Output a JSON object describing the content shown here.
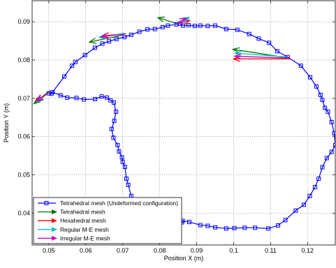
{
  "chart_data": {
    "type": "line",
    "xlabel": "Position X (m)",
    "ylabel": "Position Y (m)",
    "xlim": [
      0.0455,
      0.1275
    ],
    "ylim": [
      0.0317,
      0.0955
    ],
    "grid": true,
    "legend_position": "bottom-left",
    "x_ticks": [
      0.05,
      0.06,
      0.07,
      0.08,
      0.09,
      0.1,
      0.11,
      0.12
    ],
    "x_tick_labels": [
      "0.05",
      "0.06",
      "0.07",
      "0.08",
      "0.09",
      "0.1",
      "0.11",
      "0.12"
    ],
    "y_ticks": [
      0.04,
      0.05,
      0.06,
      0.07,
      0.08,
      0.09
    ],
    "y_tick_labels": [
      "0.04",
      "0.05",
      "0.06",
      "0.07",
      "0.08",
      "0.09"
    ],
    "path": {
      "name": "Tetrahedral mesh (Undeformed configuration)",
      "color": "#0000ff",
      "points": [
        [
          0.0507,
          0.0712
        ],
        [
          0.0542,
          0.0757
        ],
        [
          0.0563,
          0.0785
        ],
        [
          0.0572,
          0.0795
        ],
        [
          0.0598,
          0.0813
        ],
        [
          0.0625,
          0.0832
        ],
        [
          0.0645,
          0.0843
        ],
        [
          0.0663,
          0.0849
        ],
        [
          0.0683,
          0.0855
        ],
        [
          0.0705,
          0.086
        ],
        [
          0.0723,
          0.0866
        ],
        [
          0.0745,
          0.0874
        ],
        [
          0.0767,
          0.088
        ],
        [
          0.0787,
          0.0881
        ],
        [
          0.0808,
          0.0886
        ],
        [
          0.0822,
          0.089
        ],
        [
          0.0845,
          0.0893
        ],
        [
          0.0855,
          0.0895
        ],
        [
          0.0863,
          0.089
        ],
        [
          0.0878,
          0.0891
        ],
        [
          0.0895,
          0.0889
        ],
        [
          0.091,
          0.089
        ],
        [
          0.093,
          0.0889
        ],
        [
          0.095,
          0.089
        ],
        [
          0.098,
          0.0881
        ],
        [
          0.101,
          0.0879
        ],
        [
          0.1042,
          0.0868
        ],
        [
          0.1068,
          0.0856
        ],
        [
          0.1096,
          0.0845
        ],
        [
          0.1118,
          0.0823
        ],
        [
          0.1146,
          0.0808
        ],
        [
          0.1182,
          0.0785
        ],
        [
          0.1207,
          0.0755
        ],
        [
          0.1224,
          0.0731
        ],
        [
          0.1235,
          0.0709
        ],
        [
          0.124,
          0.0696
        ],
        [
          0.1247,
          0.0675
        ],
        [
          0.1255,
          0.0665
        ],
        [
          0.1265,
          0.0638
        ],
        [
          0.1272,
          0.0609
        ],
        [
          0.1275,
          0.0578
        ],
        [
          0.1265,
          0.056
        ],
        [
          0.1252,
          0.0544
        ],
        [
          0.124,
          0.052
        ],
        [
          0.123,
          0.049
        ],
        [
          0.122,
          0.0468
        ],
        [
          0.1206,
          0.0445
        ],
        [
          0.119,
          0.0422
        ],
        [
          0.1168,
          0.0407
        ],
        [
          0.114,
          0.0382
        ],
        [
          0.112,
          0.0368
        ],
        [
          0.1094,
          0.036
        ],
        [
          0.1058,
          0.0362
        ],
        [
          0.103,
          0.0362
        ],
        [
          0.1002,
          0.0361
        ],
        [
          0.098,
          0.036
        ],
        [
          0.095,
          0.0363
        ],
        [
          0.093,
          0.0367
        ],
        [
          0.091,
          0.0369
        ],
        [
          0.088,
          0.0377
        ],
        [
          0.0862,
          0.038
        ],
        [
          0.086,
          0.0376
        ],
        [
          0.085,
          0.0375
        ],
        [
          0.084,
          0.0375
        ],
        [
          0.082,
          0.0375
        ],
        [
          0.079,
          0.0376
        ],
        [
          0.0765,
          0.0376
        ],
        [
          0.0735,
          0.0379
        ],
        [
          0.0728,
          0.039
        ],
        [
          0.0727,
          0.0405
        ],
        [
          0.0726,
          0.042
        ],
        [
          0.0723,
          0.0445
        ],
        [
          0.0715,
          0.0474
        ],
        [
          0.071,
          0.049
        ],
        [
          0.0706,
          0.0521
        ],
        [
          0.07,
          0.0534
        ],
        [
          0.0698,
          0.0546
        ],
        [
          0.069,
          0.0561
        ],
        [
          0.0686,
          0.0578
        ],
        [
          0.0675,
          0.0597
        ],
        [
          0.067,
          0.062
        ],
        [
          0.0677,
          0.0641
        ],
        [
          0.0682,
          0.0665
        ],
        [
          0.0676,
          0.0689
        ],
        [
          0.0667,
          0.0695
        ],
        [
          0.0657,
          0.0702
        ],
        [
          0.0643,
          0.0705
        ],
        [
          0.0625,
          0.0698
        ],
        [
          0.0595,
          0.0697
        ],
        [
          0.0575,
          0.0701
        ],
        [
          0.055,
          0.0702
        ],
        [
          0.0532,
          0.0708
        ],
        [
          0.051,
          0.0716
        ],
        [
          0.05,
          0.0713
        ]
      ]
    },
    "arrow_series": [
      {
        "name": "Tetrahedral mesh",
        "color": "#007700",
        "arrows": [
          [
            0.0502,
            0.072,
            0.046,
            0.0686
          ],
          [
            0.07,
            0.0865,
            0.061,
            0.0847
          ],
          [
            0.084,
            0.0897,
            0.0795,
            0.0911
          ],
          [
            0.1145,
            0.0806,
            0.0998,
            0.0828
          ]
        ]
      },
      {
        "name": "Hexahedral mesh",
        "color": "#ff0000",
        "arrows": [
          [
            0.0503,
            0.0716,
            0.0466,
            0.0695
          ],
          [
            0.0708,
            0.0869,
            0.0645,
            0.0863
          ],
          [
            0.0842,
            0.0895,
            0.0881,
            0.0903
          ],
          [
            0.1155,
            0.0803,
            0.1,
            0.0803
          ]
        ]
      },
      {
        "name": "Regular M-E mesh",
        "color": "#00c0c0",
        "arrows": [
          [
            0.0506,
            0.0719,
            0.0468,
            0.0691
          ],
          [
            0.0705,
            0.087,
            0.0637,
            0.0859
          ],
          [
            0.0838,
            0.0892,
            0.088,
            0.0911
          ],
          [
            0.1145,
            0.0808,
            0.1004,
            0.0818
          ]
        ]
      },
      {
        "name": "Irregular M-E mesh",
        "color": "#c000c0",
        "arrows": [
          [
            0.0505,
            0.0718,
            0.0467,
            0.0693
          ],
          [
            0.0706,
            0.0868,
            0.0641,
            0.0861
          ],
          [
            0.084,
            0.0894,
            0.0872,
            0.0909
          ],
          [
            0.115,
            0.0805,
            0.1003,
            0.081
          ]
        ]
      }
    ],
    "legend_entries": [
      "Tetrahedral mesh (Undeformed configuration)",
      "Tetrahedral mesh",
      "Hexahedral mesh",
      "Regular M-E mesh",
      "Irregular M-E mesh"
    ]
  }
}
